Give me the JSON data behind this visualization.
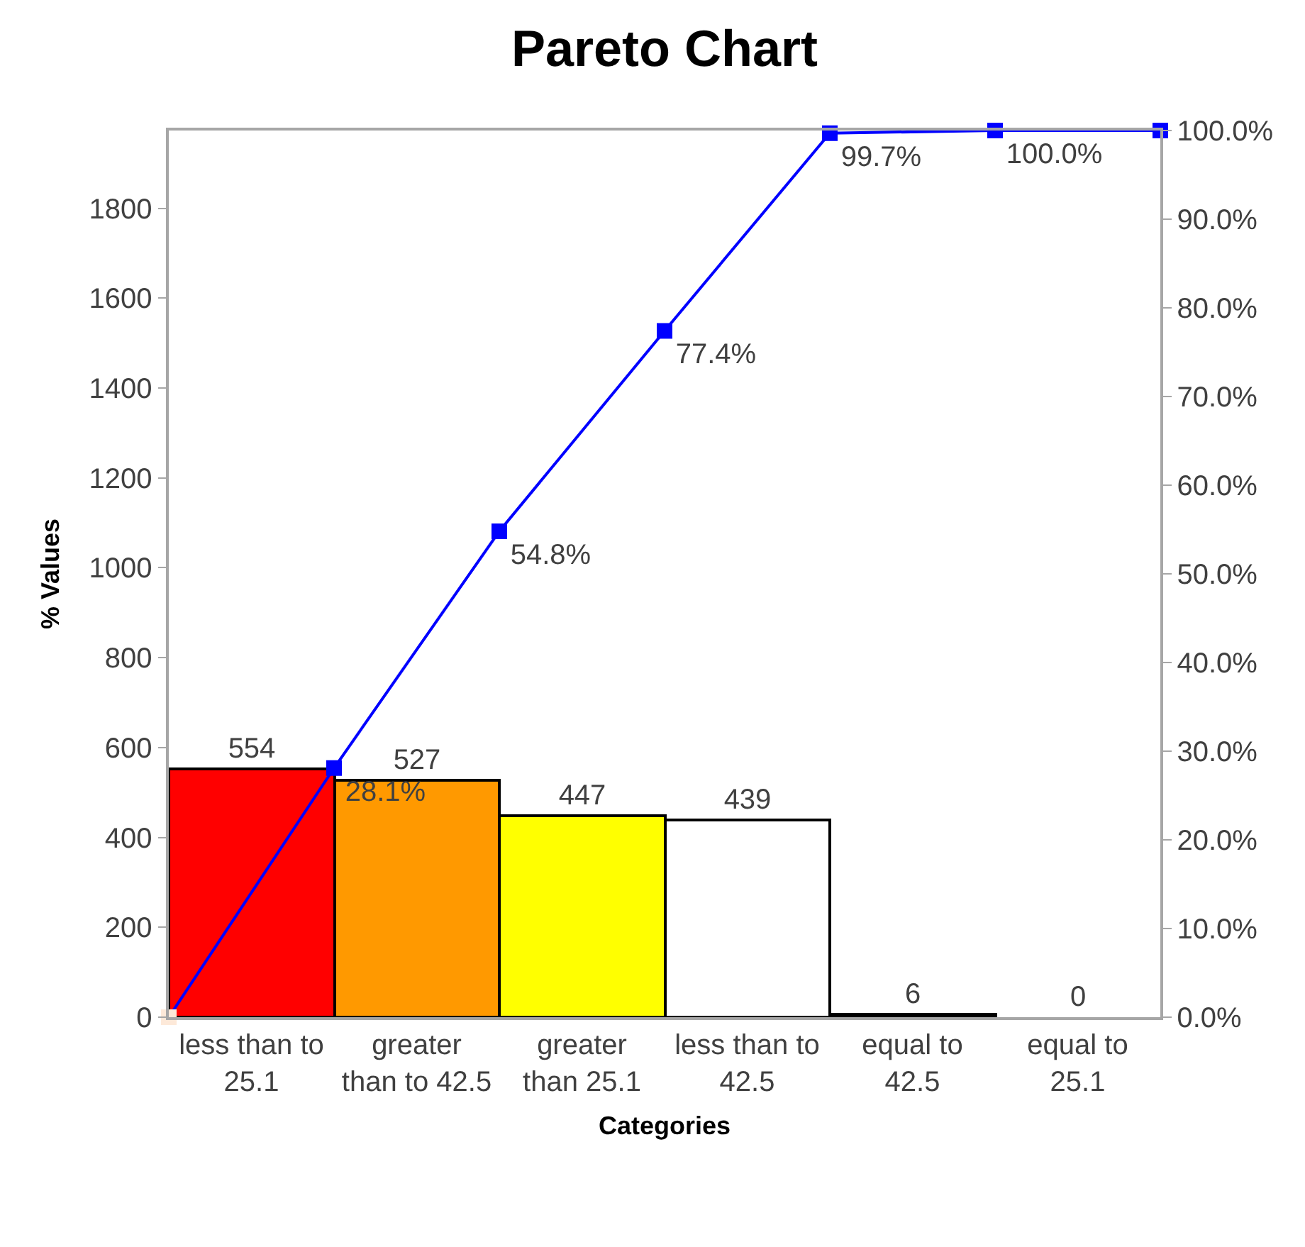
{
  "chart_data": {
    "type": "bar",
    "title": "Pareto Chart",
    "xlabel": "Categories",
    "ylabel": "% Values",
    "categories": [
      null,
      "less than to 25.1",
      null,
      "greater than to 42.5",
      null,
      "greater than 25.1",
      null,
      "less than to 42.5",
      null,
      "equal to 42.5",
      null,
      "equal to 25.1",
      null
    ],
    "series": [
      {
        "colors": [
          null,
          "#ff0000",
          null,
          "#ff9900",
          null,
          "#ffff00",
          null,
          "#ffffff",
          null,
          "#ffffff",
          null,
          "#ffffff",
          null
        ],
        "values": [
          null,
          554,
          null,
          527,
          null,
          447,
          null,
          439,
          null,
          6,
          null,
          0,
          null
        ],
        "value_labels": [
          null,
          "554",
          null,
          "527",
          null,
          "447",
          null,
          "439",
          null,
          "6",
          null,
          "0",
          null
        ]
      },
      {
        "type": "line",
        "axis": "y2",
        "color": "#0000ff",
        "colors": [
          "#fde9d9",
          null,
          "#0000ff",
          null,
          "#0000ff",
          null,
          "#0000ff",
          null,
          "#0000ff",
          null,
          "#0000ff",
          null,
          "#0000ff"
        ],
        "values": [
          0,
          null,
          28.1,
          null,
          54.8,
          null,
          77.4,
          null,
          99.7,
          null,
          100,
          null,
          100
        ],
        "value_labels": [
          null,
          null,
          "28.1%",
          null,
          "54.8%",
          null,
          "77.4%",
          null,
          "99.7%",
          null,
          "100.0%",
          null,
          null
        ]
      }
    ],
    "ylim": [
      0,
      1973
    ],
    "yticks": [
      0,
      200,
      400,
      600,
      800,
      1000,
      1200,
      1400,
      1600,
      1800
    ],
    "y2lim": [
      0,
      100
    ],
    "y2ticks": [
      {
        "value": 0,
        "label": "0.0%"
      },
      {
        "value": 10,
        "label": "10.0%"
      },
      {
        "value": 20,
        "label": "20.0%"
      },
      {
        "value": 30,
        "label": "30.0%"
      },
      {
        "value": 40,
        "label": "40.0%"
      },
      {
        "value": 50,
        "label": "50.0%"
      },
      {
        "value": 60,
        "label": "60.0%"
      },
      {
        "value": 70,
        "label": "70.0%"
      },
      {
        "value": 80,
        "label": "80.0%"
      },
      {
        "value": 90,
        "label": "90.0%"
      },
      {
        "value": 100,
        "label": "100.0%"
      }
    ],
    "marker": "square",
    "line_style": "solid"
  }
}
